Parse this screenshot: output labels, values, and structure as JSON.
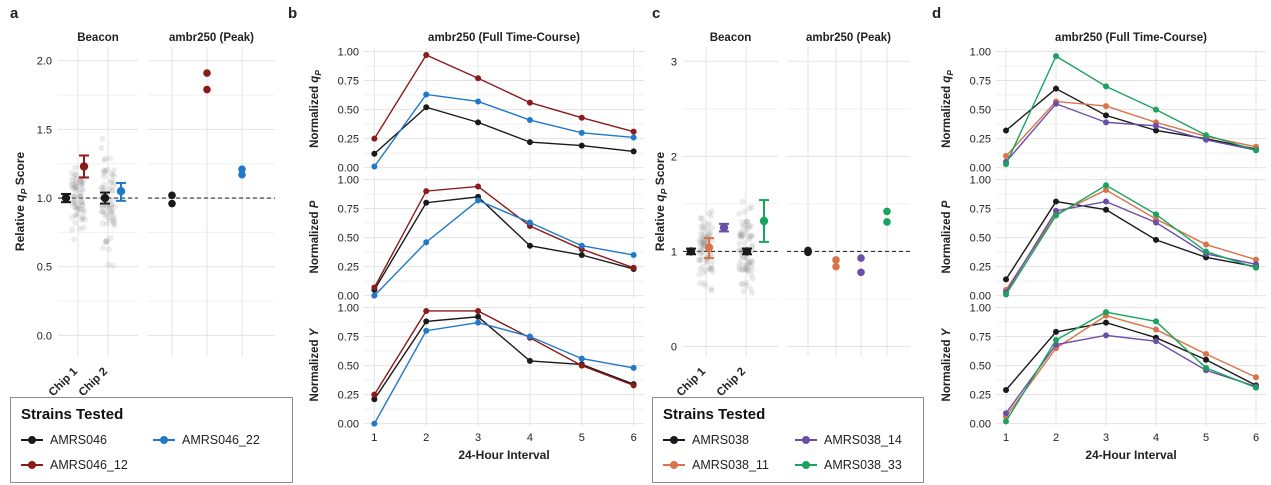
{
  "panel_labels": [
    "a",
    "b",
    "c",
    "d"
  ],
  "legend_title": "Strains Tested",
  "legend_a": [
    {
      "name": "AMRS046",
      "color": "#1a1a1a"
    },
    {
      "name": "AMRS046_22",
      "color": "#1f78c8"
    },
    {
      "name": "AMRS046_12",
      "color": "#8b1a1a"
    }
  ],
  "legend_c": [
    {
      "name": "AMRS038",
      "color": "#1a1a1a"
    },
    {
      "name": "AMRS038_14",
      "color": "#6a4fa8"
    },
    {
      "name": "AMRS038_11",
      "color": "#d9734a"
    },
    {
      "name": "AMRS038_33",
      "color": "#1aa35e"
    }
  ],
  "chart_data": [
    {
      "panel": "a",
      "type": "scatter",
      "ylabel": "Relative q_P Score",
      "ylim": [
        -0.15,
        2.1
      ],
      "yticks": [
        "0.0",
        "0.5",
        "1.0",
        "1.5",
        "2.0"
      ],
      "grid": true,
      "reference_line": 1.0,
      "facets": [
        {
          "title": "Beacon",
          "categories": [
            "Chip 1",
            "Chip 2"
          ],
          "summaries": [
            {
              "category": "Chip 1",
              "strain": "AMRS046",
              "mean": 1.0,
              "ci": [
                0.97,
                1.03
              ]
            },
            {
              "category": "Chip 1",
              "strain": "AMRS046_12",
              "mean": 1.23,
              "ci": [
                1.15,
                1.31
              ]
            },
            {
              "category": "Chip 2",
              "strain": "AMRS046",
              "mean": 1.0,
              "ci": [
                0.96,
                1.04
              ]
            },
            {
              "category": "Chip 2",
              "strain": "AMRS046_22",
              "mean": 1.05,
              "ci": [
                0.98,
                1.11
              ]
            }
          ]
        },
        {
          "title": "ambr250 (Peak)",
          "points": [
            {
              "strain": "AMRS046",
              "values": [
                1.02,
                0.96
              ]
            },
            {
              "strain": "AMRS046_12",
              "values": [
                1.91,
                1.79
              ]
            },
            {
              "strain": "AMRS046_22",
              "values": [
                1.21,
                1.17
              ]
            }
          ]
        }
      ]
    },
    {
      "panel": "b",
      "type": "line",
      "title": "ambr250 (Full Time-Course)",
      "xlabel": "24-Hour Interval",
      "x": [
        1,
        2,
        3,
        4,
        5,
        6
      ],
      "xlim": [
        0.8,
        6.2
      ],
      "ylim": [
        -0.02,
        1.03
      ],
      "yticks": [
        "0.00",
        "0.25",
        "0.50",
        "0.75",
        "1.00"
      ],
      "grid": true,
      "facets": [
        {
          "ylabel": "Normalized q_P",
          "series": [
            {
              "name": "AMRS046",
              "values": [
                0.12,
                0.52,
                0.39,
                0.22,
                0.19,
                0.14
              ]
            },
            {
              "name": "AMRS046_12",
              "values": [
                0.25,
                0.97,
                0.77,
                0.56,
                0.43,
                0.31
              ]
            },
            {
              "name": "AMRS046_22",
              "values": [
                0.01,
                0.63,
                0.57,
                0.41,
                0.3,
                0.26
              ]
            }
          ]
        },
        {
          "ylabel": "Normalized P",
          "series": [
            {
              "name": "AMRS046",
              "values": [
                0.05,
                0.8,
                0.85,
                0.43,
                0.35,
                0.23
              ]
            },
            {
              "name": "AMRS046_12",
              "values": [
                0.07,
                0.9,
                0.94,
                0.6,
                0.4,
                0.24
              ]
            },
            {
              "name": "AMRS046_22",
              "values": [
                0.0,
                0.46,
                0.82,
                0.63,
                0.43,
                0.35
              ]
            }
          ]
        },
        {
          "ylabel": "Normalized Y",
          "series": [
            {
              "name": "AMRS046",
              "values": [
                0.21,
                0.88,
                0.92,
                0.54,
                0.51,
                0.34
              ]
            },
            {
              "name": "AMRS046_12",
              "values": [
                0.25,
                0.97,
                0.97,
                0.74,
                0.5,
                0.33
              ]
            },
            {
              "name": "AMRS046_22",
              "values": [
                0.0,
                0.8,
                0.87,
                0.75,
                0.56,
                0.48
              ]
            }
          ]
        }
      ]
    },
    {
      "panel": "c",
      "type": "scatter",
      "ylabel": "Relative q_P Score",
      "ylim": [
        -0.1,
        3.15
      ],
      "yticks": [
        "0",
        "1",
        "2",
        "3"
      ],
      "grid": true,
      "reference_line": 1.0,
      "facets": [
        {
          "title": "Beacon",
          "categories": [
            "Chip 1",
            "Chip 2"
          ],
          "summaries": [
            {
              "category": "Chip 1",
              "strain": "AMRS038",
              "mean": 1.0,
              "ci": [
                0.97,
                1.03
              ]
            },
            {
              "category": "Chip 1",
              "strain": "AMRS038_11",
              "mean": 1.04,
              "ci": [
                0.93,
                1.14
              ]
            },
            {
              "category": "Chip 1",
              "strain": "AMRS038_14",
              "mean": 1.25,
              "ci": [
                1.21,
                1.29
              ]
            },
            {
              "category": "Chip 2",
              "strain": "AMRS038",
              "mean": 1.0,
              "ci": [
                0.97,
                1.03
              ]
            },
            {
              "category": "Chip 2",
              "strain": "AMRS038_33",
              "mean": 1.32,
              "ci": [
                1.1,
                1.54
              ]
            }
          ]
        },
        {
          "title": "ambr250 (Peak)",
          "points": [
            {
              "strain": "AMRS038",
              "values": [
                1.01,
                0.99
              ]
            },
            {
              "strain": "AMRS038_11",
              "values": [
                0.91,
                0.84
              ]
            },
            {
              "strain": "AMRS038_14",
              "values": [
                0.93,
                0.78
              ]
            },
            {
              "strain": "AMRS038_33",
              "values": [
                1.42,
                1.31
              ]
            }
          ]
        }
      ]
    },
    {
      "panel": "d",
      "type": "line",
      "title": "ambr250 (Full Time-Course)",
      "xlabel": "24-Hour Interval",
      "x": [
        1,
        2,
        3,
        4,
        5,
        6
      ],
      "xlim": [
        0.8,
        6.2
      ],
      "ylim": [
        -0.02,
        1.03
      ],
      "yticks": [
        "0.00",
        "0.25",
        "0.50",
        "0.75",
        "1.00"
      ],
      "grid": true,
      "facets": [
        {
          "ylabel": "Normalized q_P",
          "series": [
            {
              "name": "AMRS038",
              "values": [
                0.32,
                0.68,
                0.45,
                0.32,
                0.25,
                0.16
              ]
            },
            {
              "name": "AMRS038_11",
              "values": [
                0.1,
                0.57,
                0.53,
                0.39,
                0.27,
                0.18
              ]
            },
            {
              "name": "AMRS038_14",
              "values": [
                0.05,
                0.55,
                0.39,
                0.36,
                0.24,
                0.15
              ]
            },
            {
              "name": "AMRS038_33",
              "values": [
                0.03,
                0.96,
                0.7,
                0.5,
                0.28,
                0.15
              ]
            }
          ]
        },
        {
          "ylabel": "Normalized P",
          "series": [
            {
              "name": "AMRS038",
              "values": [
                0.14,
                0.81,
                0.74,
                0.48,
                0.33,
                0.25
              ]
            },
            {
              "name": "AMRS038_11",
              "values": [
                0.05,
                0.7,
                0.91,
                0.66,
                0.44,
                0.31
              ]
            },
            {
              "name": "AMRS038_14",
              "values": [
                0.03,
                0.73,
                0.81,
                0.63,
                0.36,
                0.27
              ]
            },
            {
              "name": "AMRS038_33",
              "values": [
                0.01,
                0.69,
                0.95,
                0.7,
                0.38,
                0.24
              ]
            }
          ]
        },
        {
          "ylabel": "Normalized Y",
          "series": [
            {
              "name": "AMRS038",
              "values": [
                0.29,
                0.79,
                0.87,
                0.74,
                0.55,
                0.33
              ]
            },
            {
              "name": "AMRS038_11",
              "values": [
                0.06,
                0.65,
                0.93,
                0.81,
                0.6,
                0.4
              ]
            },
            {
              "name": "AMRS038_14",
              "values": [
                0.09,
                0.68,
                0.76,
                0.71,
                0.46,
                0.32
              ]
            },
            {
              "name": "AMRS038_33",
              "values": [
                0.02,
                0.72,
                0.96,
                0.88,
                0.48,
                0.31
              ]
            }
          ]
        }
      ]
    }
  ]
}
